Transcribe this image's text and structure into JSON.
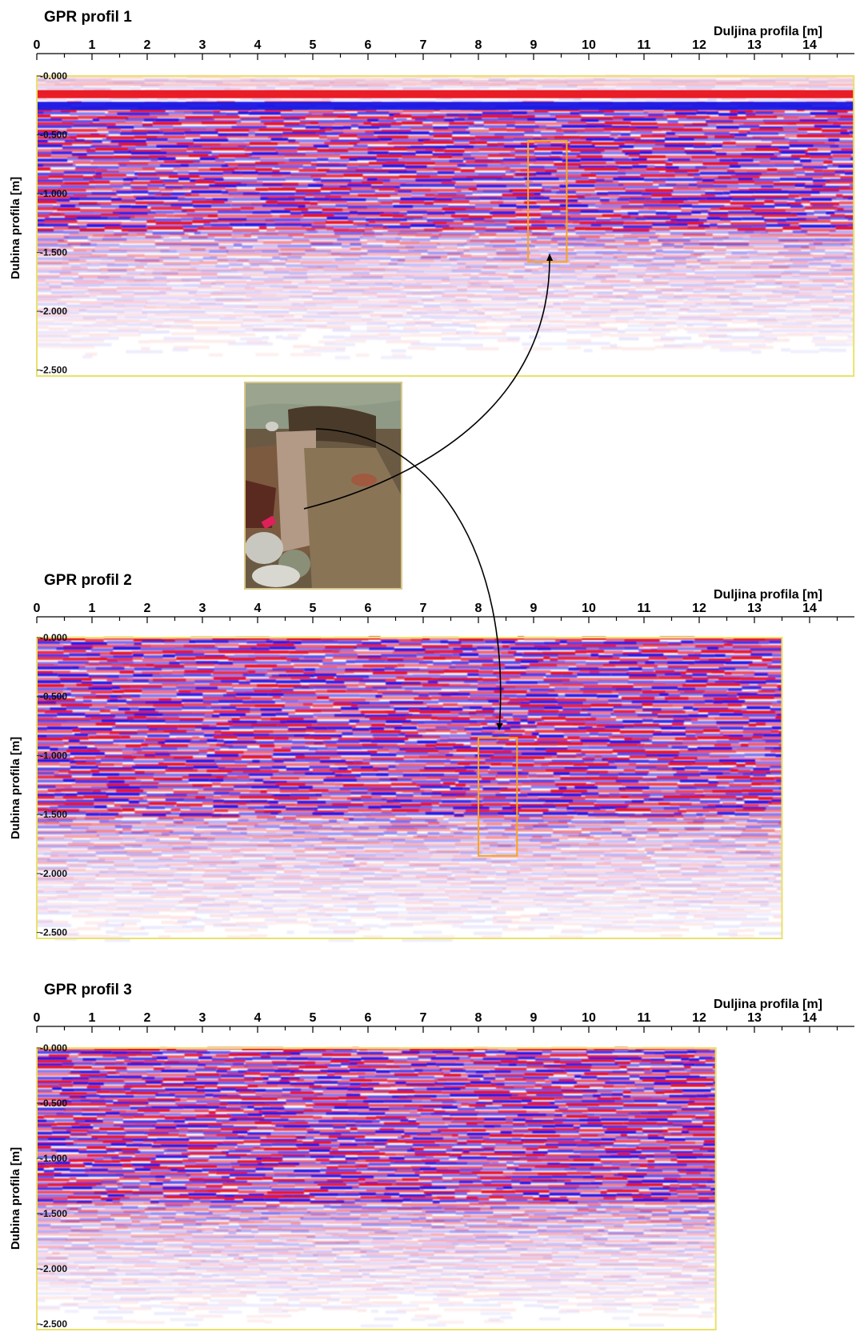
{
  "colors": {
    "positive": "#e8121b",
    "negative": "#1a1ae6",
    "frame": "#e9e26a",
    "highlight": "#f5a623",
    "arrow": "#000000"
  },
  "photo": {
    "description": ""
  },
  "chart_data": [
    {
      "type": "heatmap",
      "title": "GPR profil 1",
      "xlabel": "Duljina profila [m]",
      "ylabel": "Dubina profila [m]",
      "xticks": [
        "0",
        "1",
        "2",
        "3",
        "4",
        "5",
        "6",
        "7",
        "8",
        "9",
        "10",
        "11",
        "12",
        "13",
        "14"
      ],
      "yticks": [
        "0.000",
        "0.500",
        "1.000",
        "1.500",
        "2.000",
        "2.500"
      ],
      "xlim": [
        0,
        14.8
      ],
      "ylim": [
        0,
        2.55
      ],
      "data_extent_m": 14.8,
      "highlight": {
        "x": [
          8.9,
          9.6
        ],
        "y": [
          0.55,
          1.58
        ]
      },
      "strong_depth": [
        0.2,
        1.3
      ]
    },
    {
      "type": "heatmap",
      "title": "GPR profil 2",
      "xlabel": "Duljina profila [m]",
      "ylabel": "Dubina profila [m]",
      "xticks": [
        "0",
        "1",
        "2",
        "3",
        "4",
        "5",
        "6",
        "7",
        "8",
        "9",
        "10",
        "11",
        "12",
        "13",
        "14"
      ],
      "yticks": [
        "0.000",
        "0.500",
        "1.000",
        "1.500",
        "2.000",
        "2.500"
      ],
      "xlim": [
        0,
        14.8
      ],
      "ylim": [
        0,
        2.55
      ],
      "data_extent_m": 13.5,
      "highlight": {
        "x": [
          8.0,
          8.7
        ],
        "y": [
          0.85,
          1.85
        ]
      },
      "strong_depth": [
        0.0,
        1.5
      ]
    },
    {
      "type": "heatmap",
      "title": "GPR profil 3",
      "xlabel": "Duljina profila [m]",
      "ylabel": "Dubina profila [m]",
      "xticks": [
        "0",
        "1",
        "2",
        "3",
        "4",
        "5",
        "6",
        "7",
        "8",
        "9",
        "10",
        "11",
        "12",
        "13",
        "14"
      ],
      "yticks": [
        "0.000",
        "0.500",
        "1.000",
        "1.500",
        "2.000",
        "2.500"
      ],
      "xlim": [
        0,
        14.8
      ],
      "ylim": [
        0,
        2.55
      ],
      "data_extent_m": 12.3,
      "highlight": null,
      "strong_depth": [
        0.0,
        1.4
      ]
    }
  ]
}
